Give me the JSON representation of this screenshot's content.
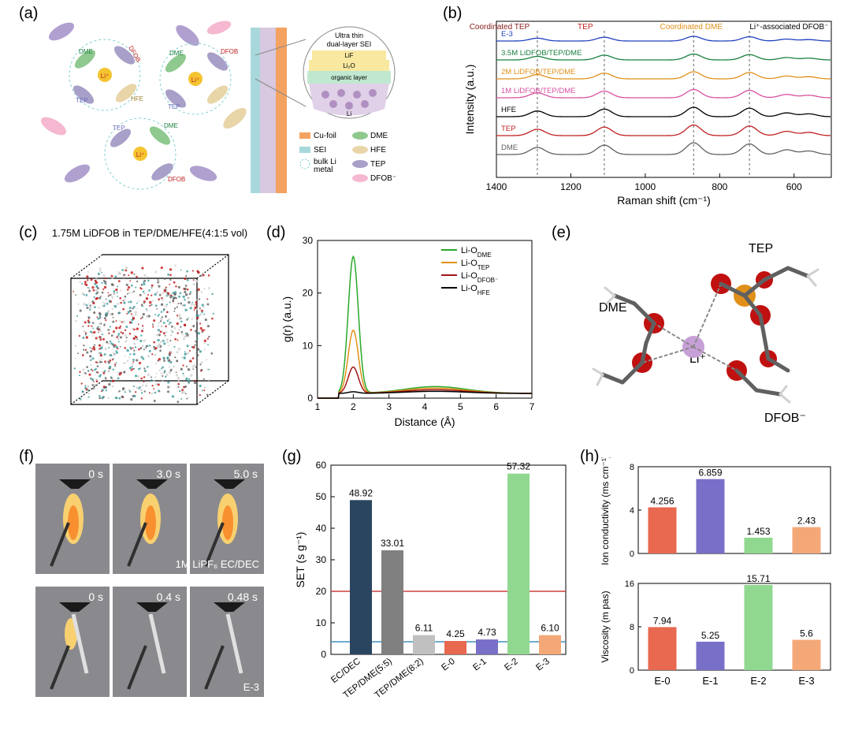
{
  "panelA": {
    "label": "(a)",
    "legend": [
      {
        "color": "#f4a261",
        "label": "Cu-foil"
      },
      {
        "color": "#8fc98f",
        "label": "DME"
      },
      {
        "color": "#a8d8dc",
        "label": "SEI"
      },
      {
        "color": "#e8d5a8",
        "label": "HFE"
      },
      {
        "color": "#b0a0d0",
        "label": "bulk Li metal"
      },
      {
        "color": "#a8a0c8",
        "label": "TEP"
      },
      {
        "color": "#f5b8d0",
        "label": "DFOB"
      }
    ],
    "callout_title": "Ultra thin dual-layer SEI",
    "callout_layers": [
      "LiF",
      "Li₂O",
      "organic layer",
      "Li"
    ],
    "molecules": [
      "DME",
      "TEP",
      "DFOB",
      "HFE",
      "Li⁺"
    ]
  },
  "panelB": {
    "label": "(b)",
    "ylabel": "Intensity (a.u.)",
    "xlabel": "Raman shift (cm⁻¹)",
    "xlim": [
      500,
      1400
    ],
    "xticks": [
      600,
      800,
      1000,
      1200,
      1400
    ],
    "annotations": [
      {
        "text": "Coordinated TEP",
        "color": "#8b2020",
        "x": 1300
      },
      {
        "text": "TEP",
        "color": "#c02020",
        "x": 1130
      },
      {
        "text": "Coordinated DME",
        "color": "#e0901a",
        "x": 950
      },
      {
        "text": "Li⁺-associated DFOB⁻",
        "color": "#000000",
        "x": 730
      }
    ],
    "traces": [
      {
        "label": "E-3",
        "color": "#2040c0"
      },
      {
        "label": "3.5M LiDFOB/TEP/DME",
        "color": "#1a8040"
      },
      {
        "label": "2M LiDFOB/TEP/DME",
        "color": "#e0901a"
      },
      {
        "label": "1M LiDFOB/TEP/DME",
        "color": "#d850a0"
      },
      {
        "label": "HFE",
        "color": "#000000"
      },
      {
        "label": "TEP",
        "color": "#c02020"
      },
      {
        "label": "DME",
        "color": "#606060"
      }
    ]
  },
  "panelC": {
    "label": "(c)",
    "title": "1.75M LiDFOB in TEP/DME/HFE(4:1:5 vol)"
  },
  "panelD": {
    "label": "(d)",
    "ylabel": "g(r) (a.u.)",
    "xlabel": "Distance (Å)",
    "xlim": [
      1,
      7
    ],
    "xticks": [
      1,
      2,
      3,
      4,
      5,
      6,
      7
    ],
    "ylim": [
      0,
      30
    ],
    "yticks": [
      0,
      10,
      20,
      30
    ],
    "series": [
      {
        "label": "Li-O",
        "sub": "DME",
        "color": "#2aa82a"
      },
      {
        "label": "Li-O",
        "sub": "TEP",
        "color": "#e0901a"
      },
      {
        "label": "Li-O",
        "sub": "DFOB⁻",
        "color": "#a01515"
      },
      {
        "label": "Li-O",
        "sub": "HFE",
        "color": "#000000"
      }
    ]
  },
  "panelE": {
    "label": "(e)",
    "labels": [
      "DME",
      "TEP",
      "Li⁺",
      "DFOB⁻"
    ],
    "atom_colors": {
      "O": "#c01010",
      "P": "#e0901a",
      "Li": "#c8a0d8",
      "C": "#606060",
      "H": "#d0d0d0"
    }
  },
  "panelF": {
    "label": "(f)",
    "row1": {
      "times": [
        "0 s",
        "3.0 s",
        "5.0 s"
      ],
      "caption": "1M LiPF₆ EC/DEC"
    },
    "row2": {
      "times": [
        "0 s",
        "0.4 s",
        "0.48 s"
      ],
      "caption": "E-3"
    }
  },
  "panelG": {
    "label": "(g)",
    "ylabel": "SET (s g⁻¹)",
    "ylim": [
      0,
      60
    ],
    "yticks": [
      0,
      10,
      20,
      30,
      40,
      50,
      60
    ],
    "refline1": {
      "y": 20,
      "color": "#cc4040"
    },
    "refline2": {
      "y": 4,
      "color": "#4090c0"
    },
    "bars": [
      {
        "label": "EC/DEC",
        "value": 48.92,
        "color": "#2a4560"
      },
      {
        "label": "TEP/DME(5:5)",
        "value": 33.01,
        "color": "#808080"
      },
      {
        "label": "TEP/DME(8:2)",
        "value": 6.11,
        "color": "#c0c0c0"
      },
      {
        "label": "E-0",
        "value": 4.25,
        "color": "#e86850"
      },
      {
        "label": "E-1",
        "value": 4.73,
        "color": "#7870c8"
      },
      {
        "label": "E-2",
        "value": 57.32,
        "color": "#90d890"
      },
      {
        "label": "E-3",
        "value": 6.1,
        "color": "#f4a878"
      }
    ]
  },
  "panelH": {
    "label": "(h)",
    "chart1": {
      "ylabel": "Ion conductivity (ms cm⁻¹)",
      "ylim": [
        0,
        8
      ],
      "yticks": [
        0,
        4,
        8
      ],
      "bars": [
        {
          "label": "E-0",
          "value": 4.256,
          "color": "#e86850"
        },
        {
          "label": "E-1",
          "value": 6.859,
          "color": "#7870c8"
        },
        {
          "label": "E-2",
          "value": 1.453,
          "color": "#90d890"
        },
        {
          "label": "E-3",
          "value": 2.43,
          "color": "#f4a878"
        }
      ]
    },
    "chart2": {
      "ylabel": "Viscosity (m pas)",
      "ylim": [
        0,
        16
      ],
      "yticks": [
        0,
        8,
        16
      ],
      "bars": [
        {
          "label": "E-0",
          "value": 7.94,
          "color": "#e86850"
        },
        {
          "label": "E-1",
          "value": 5.25,
          "color": "#7870c8"
        },
        {
          "label": "E-2",
          "value": 15.71,
          "color": "#90d890"
        },
        {
          "label": "E-3",
          "value": 5.6,
          "color": "#f4a878"
        }
      ]
    }
  }
}
